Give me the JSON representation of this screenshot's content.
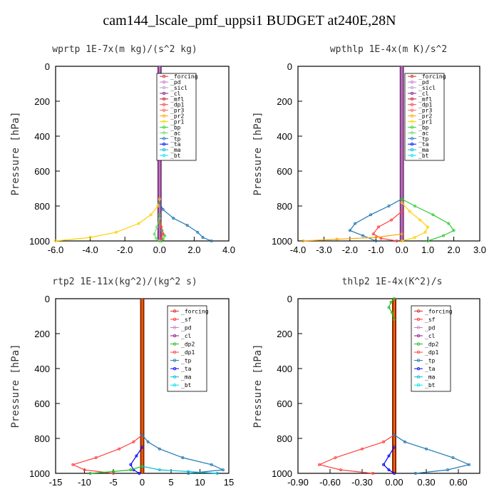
{
  "title": "cam144_lscale_pmf_uppsi1  BUDGET at240E,28N",
  "colors": {
    "_forcing": "#d62728",
    "_pd": "#c879c8",
    "_sicl": "#b4a0d8",
    "_cl": "#8b1a8b",
    "_mfl": "#c8102e",
    "_dp1": "#ff4040",
    "_pr3": "#ff6060",
    "_pr2": "#ffa500",
    "_pr1": "#ffd000",
    "_bp": "#33cc33",
    "_ac": "#66dd66",
    "_tp": "#1f77b4",
    "_ta": "#0000ff",
    "_ma": "#00bcd4",
    "_bt": "#00e5ee",
    "_sf": "#ff3030",
    "_dp2": "#22bb22"
  },
  "chart_data": [
    {
      "type": "line",
      "title": "wprtp  1E-7x(m kg)/(s^2 kg)",
      "ylabel": "Pressure [hPa]",
      "xlim": [
        -6.0,
        4.0
      ],
      "ylim": [
        1000,
        0
      ],
      "xticks": [
        -6.0,
        -4.0,
        -2.0,
        0.0,
        2.0,
        4.0
      ],
      "xtick_labels": [
        "-6.0",
        "-4.0",
        "-2.0",
        "0.0",
        "2.0",
        "4.0"
      ],
      "yticks": [
        0,
        200,
        400,
        600,
        800,
        1000
      ],
      "legend": [
        "_forcing",
        "_pd",
        "_sicl",
        "_cl",
        "_mfl",
        "_dp1",
        "_pr3",
        "_pr2",
        "_pr1",
        "_bp",
        "_ac",
        "_tp",
        "_ta",
        "_ma",
        "_bt"
      ],
      "series": [
        {
          "name": "_pr1",
          "x": [
            0,
            -0.1,
            -0.5,
            -1.2,
            -2.5,
            -4.0,
            -6.0
          ],
          "y": [
            760,
            800,
            850,
            900,
            950,
            980,
            1000
          ]
        },
        {
          "name": "_tp",
          "x": [
            0,
            0.2,
            0.8,
            1.6,
            2.2,
            2.5,
            3.0
          ],
          "y": [
            780,
            820,
            870,
            910,
            950,
            980,
            1000
          ]
        },
        {
          "name": "_bp",
          "x": [
            0,
            0.05,
            0.15,
            0.3,
            0.2,
            0.1
          ],
          "y": [
            850,
            900,
            940,
            970,
            990,
            1000
          ]
        },
        {
          "name": "_dp1",
          "x": [
            0,
            0.1,
            0.2,
            0.1,
            0
          ],
          "y": [
            880,
            920,
            960,
            985,
            1000
          ]
        },
        {
          "name": "_ac",
          "x": [
            0,
            -0.15,
            -0.3,
            -0.2,
            0
          ],
          "y": [
            870,
            920,
            960,
            985,
            1000
          ]
        }
      ]
    },
    {
      "type": "line",
      "title": "wpthlp  1E-4x(m K)/s^2",
      "ylabel": "Pressure [hPa]",
      "xlim": [
        -4.0,
        3.0
      ],
      "ylim": [
        1000,
        0
      ],
      "xticks": [
        -4.0,
        -3.0,
        -2.0,
        -1.0,
        0.0,
        1.0,
        2.0,
        3.0
      ],
      "xtick_labels": [
        "-4.0",
        "-3.0",
        "-2.0",
        "-1.0",
        "0.0",
        "1.0",
        "2.0",
        "3.0"
      ],
      "yticks": [
        0,
        200,
        400,
        600,
        800,
        1000
      ],
      "legend": [
        "_forcing",
        "_pd",
        "_sicl",
        "_cl",
        "_mfl",
        "_dp1",
        "_pr3",
        "_pr2",
        "_pr1",
        "_bp",
        "_ac",
        "_tp",
        "_ta",
        "_ma",
        "_bt"
      ],
      "series": [
        {
          "name": "_tp",
          "x": [
            0,
            -0.5,
            -1.2,
            -1.8,
            -2.0,
            -1.5,
            -1.0
          ],
          "y": [
            760,
            800,
            850,
            900,
            940,
            970,
            1000
          ]
        },
        {
          "name": "_bp",
          "x": [
            0,
            0.5,
            1.2,
            1.8,
            2.0,
            1.6,
            1.0
          ],
          "y": [
            760,
            800,
            850,
            900,
            940,
            970,
            1000
          ]
        },
        {
          "name": "_pr1",
          "x": [
            0,
            0.3,
            0.7,
            1.0,
            0.9,
            0.5,
            0
          ],
          "y": [
            780,
            830,
            880,
            920,
            950,
            980,
            1000
          ]
        },
        {
          "name": "_dp1",
          "x": [
            0,
            -0.4,
            -0.9,
            -1.1,
            -0.8,
            -0.2
          ],
          "y": [
            830,
            880,
            920,
            960,
            985,
            1000
          ]
        },
        {
          "name": "_pr2",
          "x": [
            0,
            -1.0,
            -2.5,
            -3.8
          ],
          "y": [
            960,
            980,
            990,
            1000
          ]
        }
      ]
    },
    {
      "type": "line",
      "title": "rtp2  1E-11x(kg^2)/(kg^2 s)",
      "ylabel": "Pressure [hPa]",
      "xlim": [
        -15,
        15
      ],
      "ylim": [
        1000,
        0
      ],
      "xticks": [
        -15,
        -10,
        -5,
        0,
        5,
        10,
        15
      ],
      "xtick_labels": [
        "-15",
        "-10",
        "-5",
        "0",
        "5",
        "10",
        "15"
      ],
      "yticks": [
        0,
        200,
        400,
        600,
        800,
        1000
      ],
      "legend": [
        "_forcing",
        "_sf",
        "_pd",
        "_cl",
        "_dp2",
        "_dp1",
        "_tp",
        "_ta",
        "_ma",
        "_bt"
      ],
      "series": [
        {
          "name": "_dp1",
          "x": [
            0,
            -1.5,
            -4,
            -8,
            -12,
            -10,
            -5
          ],
          "y": [
            780,
            820,
            860,
            910,
            950,
            980,
            1000
          ]
        },
        {
          "name": "_tp",
          "x": [
            0,
            1,
            3,
            7,
            12,
            14,
            8
          ],
          "y": [
            780,
            820,
            860,
            910,
            950,
            980,
            1000
          ]
        },
        {
          "name": "_ta",
          "x": [
            0,
            -1.0,
            -2.0,
            -1.5,
            -0.5
          ],
          "y": [
            850,
            900,
            950,
            980,
            1000
          ]
        },
        {
          "name": "_ma",
          "x": [
            0,
            3,
            8,
            13
          ],
          "y": [
            960,
            980,
            990,
            1000
          ]
        },
        {
          "name": "_dp2",
          "x": [
            0,
            -2,
            -5,
            -9
          ],
          "y": [
            960,
            980,
            990,
            1000
          ]
        }
      ]
    },
    {
      "type": "line",
      "title": "thlp2  1E-4x(K^2)/s",
      "ylabel": "Pressure [hPa]",
      "xlim": [
        -0.9,
        0.8
      ],
      "ylim": [
        1000,
        0
      ],
      "xticks": [
        -0.9,
        -0.6,
        -0.3,
        0.0,
        0.3,
        0.6
      ],
      "xtick_labels": [
        "-0.90",
        "-0.60",
        "-0.30",
        "0.00",
        "0.30",
        "0.60"
      ],
      "yticks": [
        0,
        200,
        400,
        600,
        800,
        1000
      ],
      "legend": [
        "_forcing",
        "_sf",
        "_pd",
        "_cl",
        "_dp2",
        "_dp1",
        "_tp",
        "_ta",
        "_ma",
        "_bt"
      ],
      "series": [
        {
          "name": "_dp1",
          "x": [
            0,
            -0.1,
            -0.3,
            -0.55,
            -0.7,
            -0.5,
            -0.2
          ],
          "y": [
            780,
            820,
            860,
            910,
            950,
            980,
            1000
          ]
        },
        {
          "name": "_tp",
          "x": [
            0,
            0.1,
            0.3,
            0.55,
            0.7,
            0.5,
            0.2
          ],
          "y": [
            780,
            820,
            860,
            910,
            950,
            980,
            1000
          ]
        },
        {
          "name": "_ta",
          "x": [
            0,
            -0.05,
            -0.1,
            -0.05,
            0
          ],
          "y": [
            850,
            900,
            950,
            980,
            1000
          ]
        },
        {
          "name": "_dp2",
          "x": [
            0,
            -0.03,
            -0.05,
            -0.02,
            0
          ],
          "y": [
            0,
            20,
            50,
            80,
            120
          ]
        }
      ]
    }
  ]
}
